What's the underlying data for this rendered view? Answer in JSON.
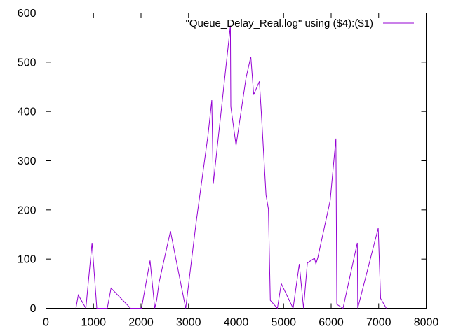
{
  "chart_data": {
    "type": "line",
    "legend_position": "top-right",
    "grid": false,
    "xlim": [
      0,
      8000
    ],
    "ylim": [
      0,
      600
    ],
    "x_ticks": [
      0,
      1000,
      2000,
      3000,
      4000,
      5000,
      6000,
      7000,
      8000
    ],
    "y_ticks": [
      0,
      100,
      200,
      300,
      400,
      500,
      600
    ],
    "series": [
      {
        "name": "\"Queue_Delay_Real.log\" using ($4):($1)",
        "color": "#9400d3",
        "x": [
          630,
          680,
          840,
          970,
          1070,
          1290,
          1370,
          1780,
          2010,
          2190,
          2290,
          2330,
          2380,
          2620,
          2720,
          2940,
          3160,
          3410,
          3490,
          3520,
          3880,
          3890,
          4000,
          4210,
          4310,
          4370,
          4490,
          4530,
          4630,
          4680,
          4720,
          4870,
          4950,
          5200,
          5330,
          5420,
          5500,
          5650,
          5680,
          5720,
          5980,
          6100,
          6120,
          6250,
          6550,
          6560,
          6990,
          7040,
          7160
        ],
        "y": [
          0,
          27,
          0,
          133,
          0,
          0,
          41,
          0,
          0,
          97,
          0,
          17,
          52,
          157,
          107,
          0,
          175,
          352,
          423,
          253,
          574,
          410,
          331,
          468,
          511,
          434,
          461,
          400,
          230,
          202,
          16,
          0,
          50,
          0,
          90,
          0,
          92,
          102,
          90,
          103,
          219,
          345,
          8,
          0,
          133,
          0,
          163,
          20,
          0
        ]
      }
    ]
  }
}
